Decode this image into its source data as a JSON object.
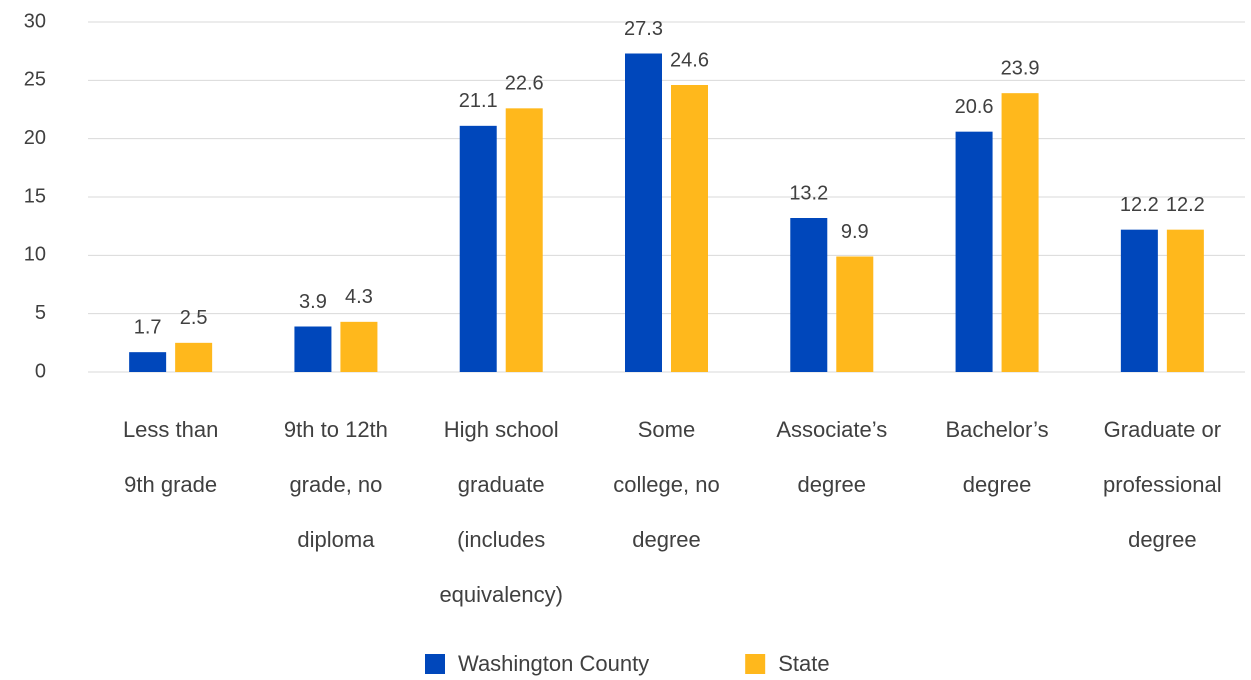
{
  "chart_data": {
    "type": "bar",
    "categories": [
      "Less than 9th grade",
      "9th to 12th grade, no diploma",
      "High school graduate (includes equivalency)",
      "Some college, no degree",
      "Associate’s degree",
      "Bachelor’s degree",
      "Graduate or professional degree"
    ],
    "series": [
      {
        "name": "Washington County",
        "color": "#0047bb",
        "values": [
          1.7,
          3.9,
          21.1,
          27.3,
          13.2,
          20.6,
          12.2
        ]
      },
      {
        "name": "State",
        "color": "#ffb81c",
        "values": [
          2.5,
          4.3,
          22.6,
          24.6,
          9.9,
          23.9,
          12.2
        ]
      }
    ],
    "ylim": [
      0,
      30
    ],
    "yticks": [
      0,
      5,
      10,
      15,
      20,
      25,
      30
    ],
    "grid": true,
    "legend": "bottom"
  }
}
